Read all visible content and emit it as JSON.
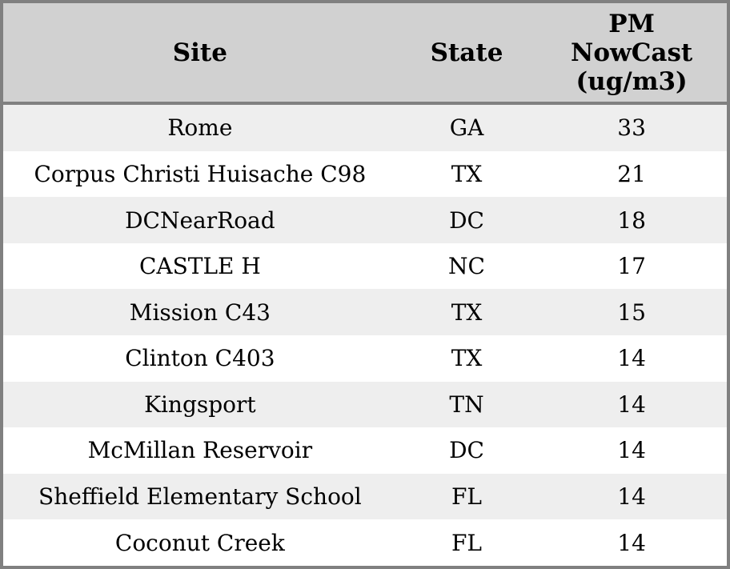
{
  "colors": {
    "border": "#808080",
    "header_bg": "#d1d1d1",
    "row_alt_bg": "#eeeeee",
    "row_bg": "#ffffff",
    "text": "#000000"
  },
  "table": {
    "headers": {
      "site": "Site",
      "state": "State",
      "pm_lines": [
        "PM",
        "NowCast",
        "(ug/m3)"
      ]
    },
    "rows": [
      {
        "site": "Rome",
        "state": "GA",
        "pm": "33"
      },
      {
        "site": "Corpus Christi Huisache C98",
        "state": "TX",
        "pm": "21"
      },
      {
        "site": "DCNearRoad",
        "state": "DC",
        "pm": "18"
      },
      {
        "site": "CASTLE H",
        "state": "NC",
        "pm": "17"
      },
      {
        "site": "Mission C43",
        "state": "TX",
        "pm": "15"
      },
      {
        "site": "Clinton C403",
        "state": "TX",
        "pm": "14"
      },
      {
        "site": "Kingsport",
        "state": "TN",
        "pm": "14"
      },
      {
        "site": "McMillan Reservoir",
        "state": "DC",
        "pm": "14"
      },
      {
        "site": "Sheffield Elementary School",
        "state": "FL",
        "pm": "14"
      },
      {
        "site": "Coconut Creek",
        "state": "FL",
        "pm": "14"
      }
    ]
  },
  "chart_data": {
    "type": "table",
    "columns": [
      "Site",
      "State",
      "PM NowCast (ug/m3)"
    ],
    "rows": [
      [
        "Rome",
        "GA",
        33
      ],
      [
        "Corpus Christi Huisache C98",
        "TX",
        21
      ],
      [
        "DCNearRoad",
        "DC",
        18
      ],
      [
        "CASTLE H",
        "NC",
        17
      ],
      [
        "Mission C43",
        "TX",
        15
      ],
      [
        "Clinton C403",
        "TX",
        14
      ],
      [
        "Kingsport",
        "TN",
        14
      ],
      [
        "McMillan Reservoir",
        "DC",
        14
      ],
      [
        "Sheffield Elementary School",
        "FL",
        14
      ],
      [
        "Coconut Creek",
        "FL",
        14
      ]
    ]
  }
}
